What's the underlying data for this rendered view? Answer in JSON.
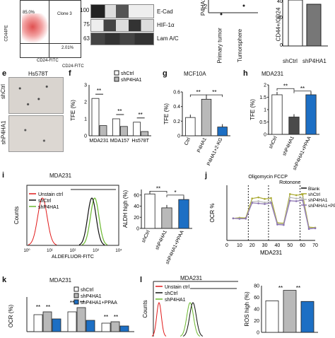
{
  "colors": {
    "white": "#ffffff",
    "grey": "#b9b9b9",
    "blue": "#1d6fc4",
    "darkgrey": "#4a4a4a",
    "red": "#e11a1a",
    "green": "#6bb82f",
    "black": "#111111",
    "olive": "#a9a931",
    "purple": "#8a72b0"
  },
  "panel_top_flow": {
    "ylabel": "CD44PE",
    "xlabel": "CD24-FITC",
    "quadrant_ul": "85.0%",
    "clone": "Clone 3",
    "quadrant_lr": "2.01%"
  },
  "panel_top_blot": {
    "header_left": "E-Cad",
    "xlabel": "CD24-FITC",
    "markers": [
      "100",
      "75",
      "63"
    ],
    "lanes": [
      "E-Cad",
      "HIF-1α",
      "Lam A/C"
    ]
  },
  "panel_top_p4ha1": {
    "ylabel": "P4HA1",
    "tick": "-2",
    "xticks": [
      "Primary tumor",
      "Tumorsphere"
    ]
  },
  "panel_top_cd44": {
    "ylabel": "CD44+/CD24",
    "xticks": [
      "shCtrl",
      "shP4HA1"
    ]
  },
  "panel_e": {
    "letter": "e",
    "title": "Hs578T",
    "rows": [
      "shCtrl",
      "shP4HA1"
    ]
  },
  "panel_f": {
    "letter": "f",
    "legend": [
      "shCtrl",
      "shP4HA1"
    ],
    "ylabel": "TFE (%)",
    "sig": [
      "**",
      "**",
      "**"
    ]
  },
  "panel_g": {
    "letter": "g",
    "title": "MCF10A",
    "ylabel": "TFE (%)",
    "sig": [
      "**",
      "**"
    ]
  },
  "panel_h": {
    "letter": "h",
    "title": "MDA231",
    "ylabel": "TFE (%)",
    "sig": [
      "**",
      "**"
    ]
  },
  "panel_i": {
    "letter": "i",
    "title": "MDA231",
    "legend": [
      "Unstain ctrl",
      "shCtrl",
      "shP4HA1"
    ],
    "xlabel": "ALDEFLUOR-FITC",
    "ylabel": "Counts",
    "bar_ylabel": "ALDH high (%)",
    "sig": [
      "**",
      "*"
    ]
  },
  "panel_j": {
    "letter": "j",
    "annot": "Oligomycin FCCP",
    "annot2": "Rotonone",
    "ylabel": "OCR %",
    "xlabel": "MDA231",
    "legend": [
      "Blank",
      "shCtrl",
      "shP4HA1",
      "shP4HA1+PPAA"
    ]
  },
  "panel_k": {
    "letter": "k",
    "title": "MDA231",
    "legend": [
      "shCtrl",
      "shP4HA1",
      "shP4HA1+PPAA"
    ],
    "ylabel": "OCR (%)",
    "sig": [
      "**",
      "**",
      "**",
      "**",
      "**",
      "**"
    ]
  },
  "panel_l": {
    "letter": "l",
    "title": "MDA231",
    "legend": [
      "Unstain ctrl",
      "shCtrl",
      "shP4HA1"
    ],
    "ylabel": "Counts",
    "bar_ylabel": "ROS high (%)",
    "sig": [
      "**",
      "**"
    ]
  },
  "chart_data": [
    {
      "type": "bar",
      "panel": "f",
      "categories": [
        "MDA231",
        "MDA157",
        "Hs578T"
      ],
      "series": [
        {
          "name": "shCtrl",
          "values": [
            2.2,
            1.0,
            0.8
          ]
        },
        {
          "name": "shP4HA1",
          "values": [
            0.6,
            0.55,
            0.25
          ]
        }
      ],
      "ylabel": "TFE (%)",
      "ylim": [
        0,
        3
      ],
      "yticks": [
        0,
        1,
        2,
        3
      ]
    },
    {
      "type": "bar",
      "panel": "g",
      "categories": [
        "Ctrl",
        "P4HA1",
        "P4HA1+2-KG"
      ],
      "values": [
        0.25,
        0.5,
        0.12
      ],
      "ylabel": "TFE (%)",
      "ylim": [
        0,
        0.6
      ],
      "yticks": [
        0,
        0.2,
        0.4,
        0.6
      ]
    },
    {
      "type": "bar",
      "panel": "h",
      "categories": [
        "shCtrl",
        "shP4HA1",
        "shP4HA1+PPAA"
      ],
      "values": [
        1.6,
        0.7,
        1.6
      ],
      "ylabel": "TFE (%)",
      "ylim": [
        0,
        2
      ],
      "yticks": [
        0,
        0.5,
        1.0,
        1.5,
        2.0
      ]
    },
    {
      "type": "bar",
      "panel": "i",
      "categories": [
        "shCtrl",
        "shP4HA1",
        "shP4HA1+PPAA"
      ],
      "values": [
        62,
        37,
        52
      ],
      "ylabel": "ALDH high (%)",
      "ylim": [
        0,
        70
      ],
      "yticks": [
        0,
        20,
        40,
        60
      ]
    },
    {
      "type": "line",
      "panel": "j",
      "x": [
        5,
        10,
        15,
        20,
        25,
        30,
        35,
        40,
        45,
        50,
        55,
        60,
        65,
        70
      ],
      "series": [
        {
          "name": "shCtrl",
          "values": [
            100,
            103,
            102,
            190,
            195,
            188,
            192,
            80,
            78,
            210,
            205,
            208,
            60,
            58
          ]
        },
        {
          "name": "shP4HA1",
          "values": [
            100,
            100,
            98,
            175,
            178,
            172,
            176,
            75,
            74,
            195,
            190,
            193,
            55,
            56
          ]
        },
        {
          "name": "shP4HA1+PPAA",
          "values": [
            100,
            98,
            99,
            170,
            168,
            165,
            170,
            72,
            70,
            180,
            178,
            182,
            52,
            55
          ]
        }
      ],
      "xlabel": "MDA231",
      "ylabel": "OCR %",
      "xlim": [
        0,
        70
      ],
      "xticks": [
        0,
        10,
        20,
        30,
        40,
        50,
        60,
        70
      ]
    }
  ]
}
